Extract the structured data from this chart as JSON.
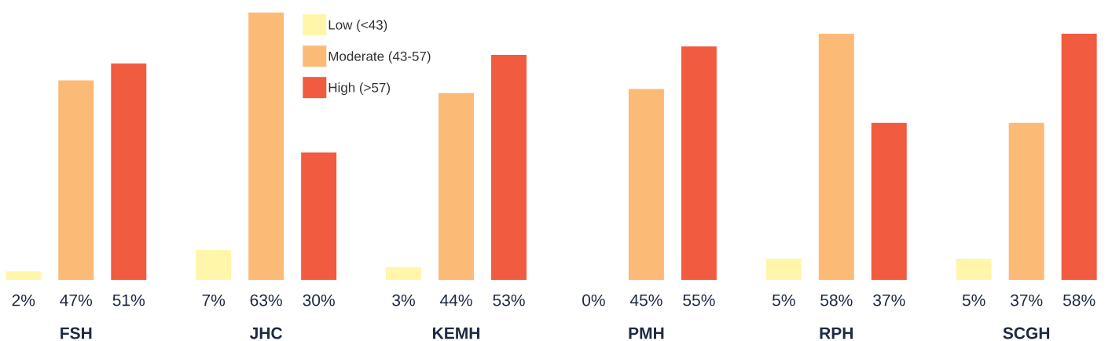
{
  "chart_data": {
    "type": "bar",
    "categories": [
      "FSH",
      "JHC",
      "KEMH",
      "PMH",
      "RPH",
      "SCGH"
    ],
    "series": [
      {
        "name": "Low (<43)",
        "color": "#fff6aa",
        "values": [
          2,
          7,
          3,
          0,
          5,
          5
        ],
        "value_labels": [
          "2%",
          "7%",
          "3%",
          "0%",
          "5%",
          "5%"
        ]
      },
      {
        "name": "Moderate (43-57)",
        "color": "#fbbb76",
        "values": [
          47,
          63,
          44,
          45,
          58,
          37
        ],
        "value_labels": [
          "47%",
          "63%",
          "44%",
          "45%",
          "58%",
          "37%"
        ]
      },
      {
        "name": "High (>57)",
        "color": "#f15b40",
        "values": [
          51,
          30,
          53,
          55,
          37,
          58
        ],
        "value_labels": [
          "51%",
          "30%",
          "53%",
          "55%",
          "37%",
          "58%"
        ]
      }
    ],
    "legend": "top"
  }
}
